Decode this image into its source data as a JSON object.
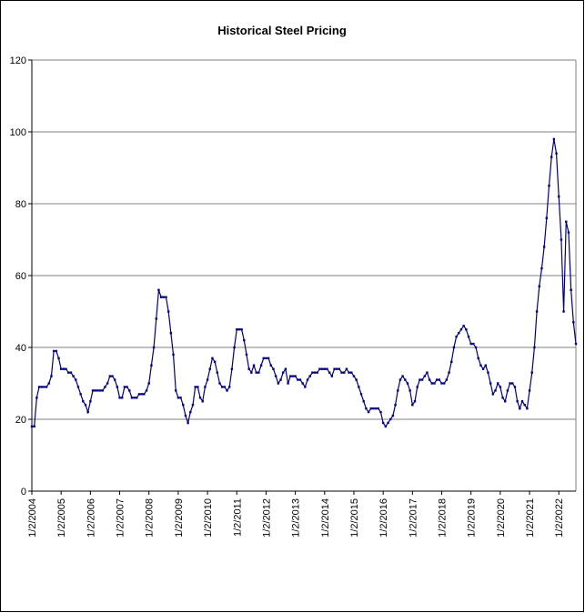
{
  "chart_data": {
    "type": "line",
    "title": "Historical Steel Pricing",
    "categories": [
      "1/2/2004",
      null,
      null,
      null,
      null,
      null,
      null,
      null,
      null,
      null,
      null,
      null,
      "1/2/2005",
      null,
      null,
      null,
      null,
      null,
      null,
      null,
      null,
      null,
      null,
      null,
      "1/2/2006",
      null,
      null,
      null,
      null,
      null,
      null,
      null,
      null,
      null,
      null,
      null,
      "1/2/2007",
      null,
      null,
      null,
      null,
      null,
      null,
      null,
      null,
      null,
      null,
      null,
      "1/2/2008",
      null,
      null,
      null,
      null,
      null,
      null,
      null,
      null,
      null,
      null,
      null,
      "1/2/2009",
      null,
      null,
      null,
      null,
      null,
      null,
      null,
      null,
      null,
      null,
      null,
      "1/2/2010",
      null,
      null,
      null,
      null,
      null,
      null,
      null,
      null,
      null,
      null,
      null,
      "1/2/2011",
      null,
      null,
      null,
      null,
      null,
      null,
      null,
      null,
      null,
      null,
      null,
      "1/2/2012",
      null,
      null,
      null,
      null,
      null,
      null,
      null,
      null,
      null,
      null,
      null,
      "1/2/2013",
      null,
      null,
      null,
      null,
      null,
      null,
      null,
      null,
      null,
      null,
      null,
      "1/2/2014",
      null,
      null,
      null,
      null,
      null,
      null,
      null,
      null,
      null,
      null,
      null,
      "1/2/2015",
      null,
      null,
      null,
      null,
      null,
      null,
      null,
      null,
      null,
      null,
      null,
      "1/2/2016",
      null,
      null,
      null,
      null,
      null,
      null,
      null,
      null,
      null,
      null,
      null,
      "1/2/2017",
      null,
      null,
      null,
      null,
      null,
      null,
      null,
      null,
      null,
      null,
      null,
      "1/2/2018",
      null,
      null,
      null,
      null,
      null,
      null,
      null,
      null,
      null,
      null,
      null,
      "1/2/2019",
      null,
      null,
      null,
      null,
      null,
      null,
      null,
      null,
      null,
      null,
      null,
      "1/2/2020",
      null,
      null,
      null,
      null,
      null,
      null,
      null,
      null,
      null,
      null,
      null,
      "1/2/2021",
      null,
      null,
      null,
      null,
      null,
      null,
      null,
      null,
      null,
      null,
      null,
      "1/2/2022",
      null,
      null,
      null,
      null,
      null,
      null,
      null
    ],
    "values": [
      18,
      18,
      26,
      29,
      29,
      29,
      29,
      30,
      32,
      39,
      39,
      37,
      34,
      34,
      34,
      33,
      33,
      32,
      31,
      29,
      27,
      25,
      24,
      22,
      25,
      28,
      28,
      28,
      28,
      28,
      29,
      30,
      32,
      32,
      31,
      29,
      26,
      26,
      29,
      29,
      28,
      26,
      26,
      26,
      27,
      27,
      27,
      28,
      30,
      35,
      40,
      48,
      56,
      54,
      54,
      54,
      50,
      44,
      38,
      28,
      26,
      26,
      24,
      21,
      19,
      22,
      24,
      29,
      29,
      26,
      25,
      29,
      31,
      34,
      37,
      36,
      33,
      30,
      29,
      29,
      28,
      29,
      34,
      40,
      45,
      45,
      45,
      42,
      38,
      34,
      33,
      35,
      33,
      33,
      35,
      37,
      37,
      37,
      35,
      34,
      32,
      30,
      31,
      33,
      34,
      30,
      32,
      32,
      32,
      31,
      31,
      30,
      29,
      31,
      32,
      33,
      33,
      33,
      34,
      34,
      34,
      34,
      33,
      32,
      34,
      34,
      34,
      33,
      33,
      34,
      33,
      33,
      32,
      31,
      29,
      27,
      25,
      23,
      22,
      23,
      23,
      23,
      23,
      22,
      19,
      18,
      19,
      20,
      21,
      24,
      28,
      31,
      32,
      31,
      30,
      28,
      24,
      25,
      29,
      31,
      31,
      32,
      33,
      31,
      30,
      30,
      31,
      31,
      30,
      30,
      31,
      33,
      36,
      40,
      43,
      44,
      45,
      46,
      45,
      43,
      41,
      41,
      40,
      37,
      35,
      34,
      35,
      33,
      30,
      27,
      28,
      30,
      29,
      26,
      25,
      28,
      30,
      30,
      29,
      25,
      23,
      25,
      24,
      23,
      28,
      33,
      40,
      50,
      57,
      62,
      68,
      76,
      85,
      93,
      98,
      94,
      82,
      70,
      50,
      75,
      72,
      56,
      47,
      41
    ],
    "color": "#000080",
    "ylim": [
      0,
      120
    ],
    "yticks": [
      0,
      20,
      40,
      60,
      80,
      100,
      120
    ],
    "grid": true
  }
}
